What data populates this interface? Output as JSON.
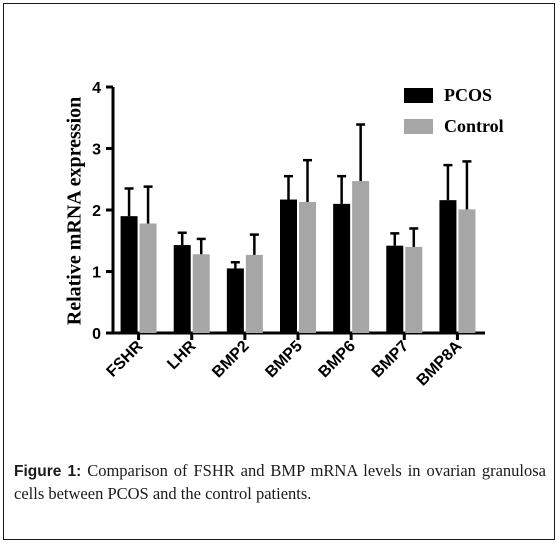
{
  "figure": {
    "caption_label": "Figure 1:",
    "caption_text": " Comparison of FSHR and BMP mRNA levels in ovarian granulosa cells between PCOS and the control patients."
  },
  "chart_data": {
    "type": "bar",
    "categories": [
      "FSHR",
      "LHR",
      "BMP2",
      "BMP5",
      "BMP6",
      "BMP7",
      "BMP8A"
    ],
    "series": [
      {
        "name": "PCOS",
        "color": "#000000",
        "values": [
          1.9,
          1.43,
          1.05,
          2.17,
          2.1,
          1.42,
          2.16
        ],
        "errors": [
          0.45,
          0.2,
          0.1,
          0.38,
          0.45,
          0.2,
          0.57
        ]
      },
      {
        "name": "Control",
        "color": "#a6a6a6",
        "values": [
          1.78,
          1.28,
          1.27,
          2.13,
          2.47,
          1.4,
          2.01
        ],
        "errors": [
          0.6,
          0.25,
          0.33,
          0.68,
          0.92,
          0.3,
          0.78
        ]
      }
    ],
    "ylabel": "Relative  mRNA expression",
    "ylim": [
      0,
      4
    ],
    "yticks": [
      0,
      1,
      2,
      3,
      4
    ],
    "grid": false,
    "legend_position": "top-right"
  }
}
